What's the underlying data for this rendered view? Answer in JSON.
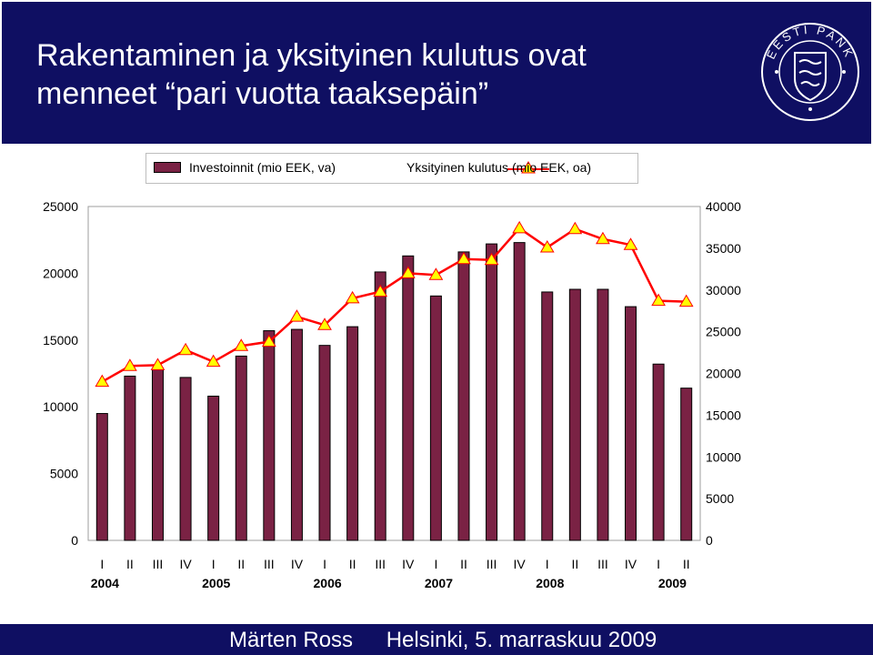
{
  "header": {
    "title_line1": "Rakentaminen ja yksityinen kulutus ovat",
    "title_line2": "menneet “pari vuotta taaksepäin”",
    "logo_text": "EESTI PANK"
  },
  "footer": {
    "author": "Märten Ross",
    "event": "Helsinki, 5. marraskuu 2009"
  },
  "colors": {
    "band": "#0f0f62",
    "bar": "#7a2244",
    "line": "#ff0000",
    "marker": "#ffff00"
  },
  "chart_data": {
    "type": "bar+line",
    "categories": [
      "I",
      "II",
      "III",
      "IV",
      "I",
      "II",
      "III",
      "IV",
      "I",
      "II",
      "III",
      "IV",
      "I",
      "II",
      "III",
      "IV",
      "I",
      "II",
      "III",
      "IV",
      "I",
      "II"
    ],
    "years": [
      {
        "label": "2004",
        "quarter_index": 0
      },
      {
        "label": "2005",
        "quarter_index": 4
      },
      {
        "label": "2006",
        "quarter_index": 8
      },
      {
        "label": "2007",
        "quarter_index": 12
      },
      {
        "label": "2008",
        "quarter_index": 16
      },
      {
        "label": "2009",
        "quarter_index": 20
      }
    ],
    "series": [
      {
        "name": "Investoinnit (mio EEK, va)",
        "type": "bar",
        "axis": "left",
        "values": [
          9500,
          12300,
          12900,
          12200,
          10800,
          13800,
          15700,
          15800,
          14600,
          16000,
          20100,
          21300,
          18300,
          21600,
          22200,
          22300,
          18600,
          18800,
          18800,
          17500,
          13200,
          11400
        ]
      },
      {
        "name": "Yksityinen kulutus (mio EEK, oa)",
        "type": "line",
        "axis": "right",
        "values": [
          19000,
          20900,
          21000,
          22800,
          21400,
          23300,
          23800,
          26800,
          25800,
          29000,
          29800,
          32000,
          31800,
          33700,
          33600,
          37400,
          35100,
          37300,
          36100,
          35400,
          28700,
          28600
        ]
      }
    ],
    "left_axis": {
      "min": 0,
      "max": 25000,
      "ticks": [
        "0",
        "5000",
        "10000",
        "15000",
        "20000",
        "25000"
      ]
    },
    "right_axis": {
      "min": 0,
      "max": 40000,
      "ticks": [
        "0",
        "5000",
        "10000",
        "15000",
        "20000",
        "25000",
        "30000",
        "35000",
        "40000"
      ]
    },
    "legend_position": "top",
    "grid": false
  }
}
